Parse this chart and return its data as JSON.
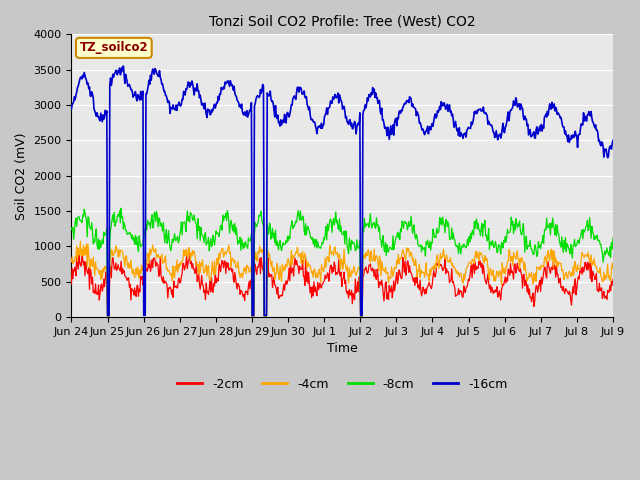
{
  "title": "Tonzi Soil CO2 Profile: Tree (West) CO2",
  "xlabel": "Time",
  "ylabel": "Soil CO2 (mV)",
  "legend_label": "TZ_soilco2",
  "ylim": [
    0,
    4000
  ],
  "series_colors": {
    "-2cm": "#ff0000",
    "-4cm": "#ffa500",
    "-8cm": "#00dd00",
    "-16cm": "#0000cc"
  },
  "fig_bg": "#c8c8c8",
  "plot_bg": "#e8e8e8",
  "legend_box_facecolor": "#ffffcc",
  "legend_box_edgecolor": "#cc8800",
  "legend_text_color": "#880000",
  "tick_labels": [
    "Jun 24",
    "Jun 25",
    "Jun 26",
    "Jun 27",
    "Jun 28",
    "Jun 29",
    "Jun 30",
    "Jul 1",
    "Jul 2",
    "Jul 3",
    "Jul 4",
    "Jul 5",
    "Jul 6",
    "Jul 7",
    "Jul 8",
    "Jul 9"
  ],
  "num_days": 15,
  "pts_per_day": 48
}
